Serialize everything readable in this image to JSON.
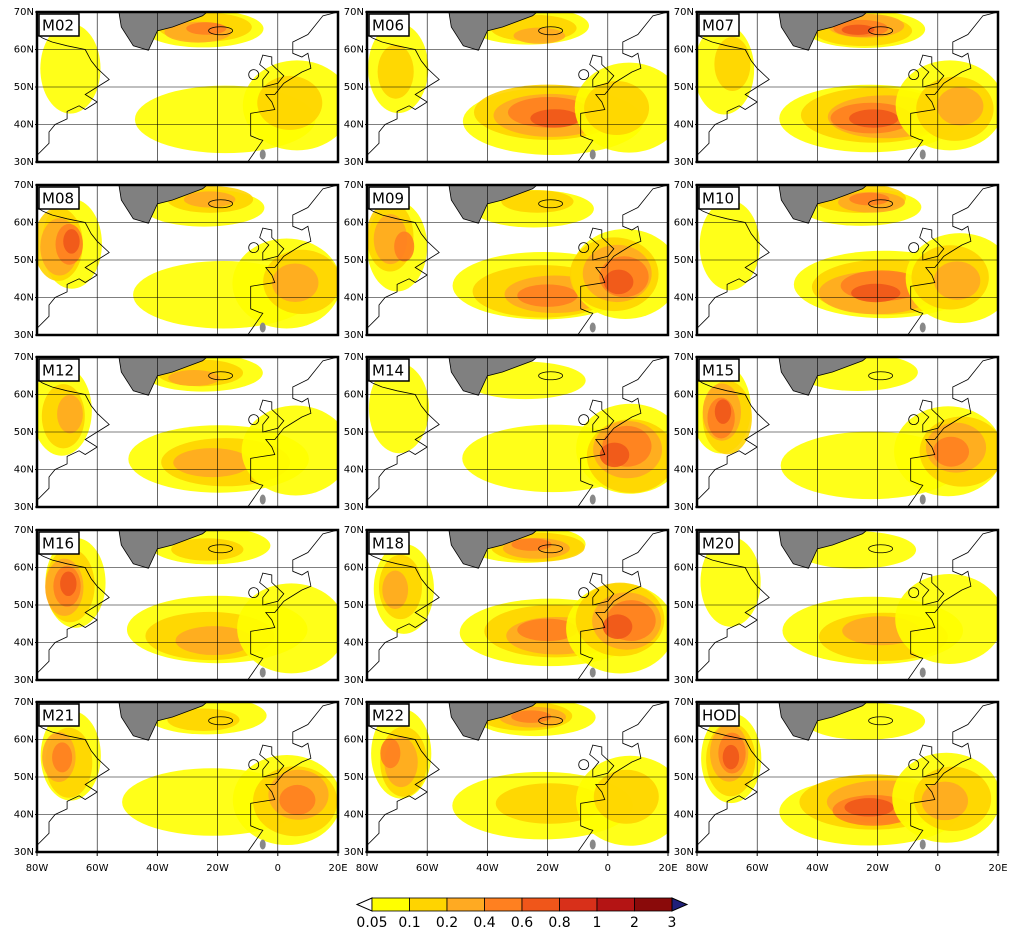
{
  "panels": [
    {
      "label": "M02"
    },
    {
      "label": "M06"
    },
    {
      "label": "M07"
    },
    {
      "label": "M08"
    },
    {
      "label": "M09"
    },
    {
      "label": "M10"
    },
    {
      "label": "M12"
    },
    {
      "label": "M14"
    },
    {
      "label": "M15"
    },
    {
      "label": "M16"
    },
    {
      "label": "M18"
    },
    {
      "label": "M20"
    },
    {
      "label": "M21"
    },
    {
      "label": "M22"
    },
    {
      "label": "HOD"
    }
  ],
  "lat_labels": [
    "70N",
    "60N",
    "50N",
    "40N",
    "30N"
  ],
  "lon_labels": [
    "80W",
    "60W",
    "40W",
    "20W",
    "0",
    "20E"
  ],
  "colorbar": {
    "labels": [
      "0.05",
      "0.1",
      "0.2",
      "0.4",
      "0.6",
      "0.8",
      "1",
      "2",
      "3"
    ],
    "colors": [
      "#ffffff",
      "#ffff00",
      "#ffd400",
      "#ffaa22",
      "#ff8020",
      "#f0561a",
      "#d8301a",
      "#b41414",
      "#8a0a0a",
      "#20207a"
    ]
  }
}
